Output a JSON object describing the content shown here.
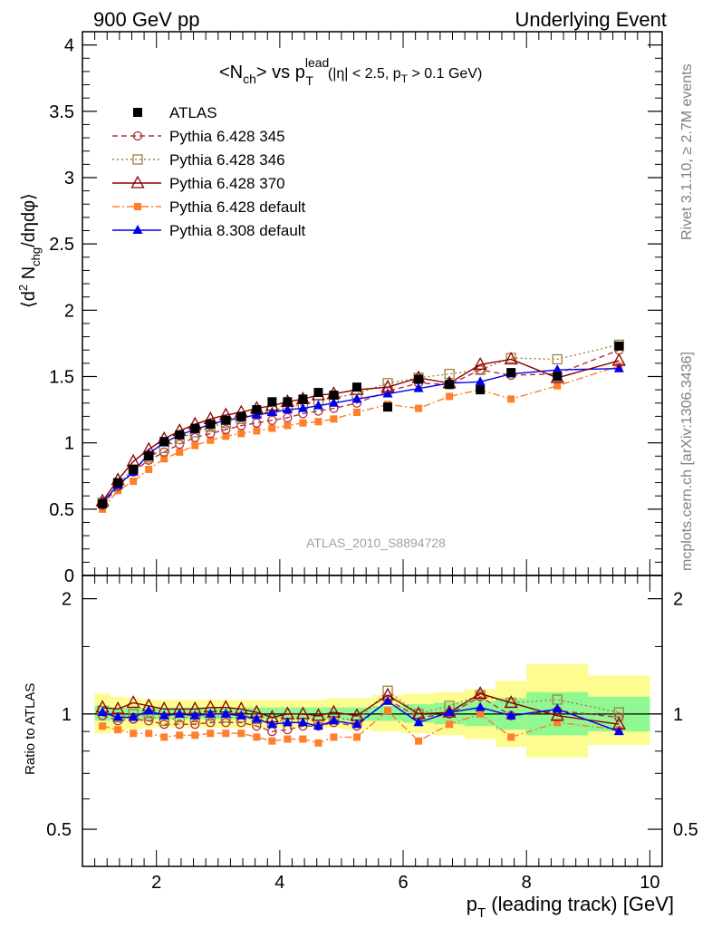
{
  "header": {
    "left_label": "900 GeV pp",
    "right_label": "Underlying Event"
  },
  "side_labels": {
    "rivet": "Rivet 3.1.10, ≥ 2.7M events",
    "mcplots": "mcplots.cern.ch [arXiv:1306.3436]"
  },
  "plot_title": {
    "main": "<N",
    "sub1": "ch",
    "mid": "> vs p",
    "sup": "lead",
    "sub2": "T",
    "cut": "(|η| < 2.5, p",
    "cut_sub": "T",
    "cut_end": " > 0.1 GeV)"
  },
  "analysis_id": "ATLAS_2010_S8894728",
  "colors": {
    "data": "#000000",
    "py345": "#b03040",
    "py346": "#a08040",
    "py370": "#8b0000",
    "p6def": "#ff7f2a",
    "p8def": "#0000ee",
    "band_stat": "#90f890",
    "band_syst": "#fcfc90"
  },
  "chart_data": [
    {
      "type": "line",
      "panel": "main",
      "ylabel_parts": [
        "⟨d",
        "2",
        " N",
        "chg",
        "/dηdφ⟩"
      ],
      "ylim": [
        0,
        4.1
      ],
      "yticks": [
        "0",
        "0.5",
        "1",
        "1.5",
        "2",
        "2.5",
        "3",
        "3.5",
        "4"
      ],
      "xlim": [
        0.8,
        10.2
      ],
      "x": [
        1.125,
        1.375,
        1.625,
        1.875,
        2.125,
        2.375,
        2.625,
        2.875,
        3.125,
        3.375,
        3.625,
        3.875,
        4.125,
        4.375,
        4.625,
        4.875,
        5.25,
        5.75,
        6.25,
        6.75,
        7.25,
        7.75,
        8.5,
        9.5
      ],
      "legend": {
        "placement": "top-left",
        "entries": [
          "ATLAS",
          "Pythia 6.428 345",
          "Pythia 6.428 346",
          "Pythia 6.428 370",
          "Pythia 6.428 default",
          "Pythia 8.308 default"
        ]
      },
      "series": [
        {
          "name": "ATLAS",
          "key": "data",
          "values": [
            0.54,
            0.7,
            0.8,
            0.9,
            1.01,
            1.06,
            1.11,
            1.14,
            1.17,
            1.2,
            1.25,
            1.31,
            1.31,
            1.33,
            1.38,
            1.36,
            1.42,
            1.27,
            1.48,
            1.44,
            1.4,
            1.53,
            1.5,
            1.73
          ]
        },
        {
          "name": "Pythia 6.428 345",
          "key": "py345",
          "values": [
            0.53,
            0.67,
            0.78,
            0.87,
            0.93,
            0.99,
            1.04,
            1.07,
            1.1,
            1.13,
            1.15,
            1.17,
            1.19,
            1.22,
            1.24,
            1.26,
            1.3,
            1.39,
            1.45,
            1.44,
            1.55,
            1.51,
            1.52,
            1.7
          ]
        },
        {
          "name": "Pythia 6.428 346",
          "key": "py346",
          "values": [
            0.55,
            0.69,
            0.8,
            0.89,
            0.96,
            1.03,
            1.08,
            1.12,
            1.15,
            1.18,
            1.22,
            1.24,
            1.27,
            1.29,
            1.32,
            1.34,
            1.37,
            1.45,
            1.49,
            1.52,
            1.55,
            1.64,
            1.63,
            1.74
          ]
        },
        {
          "name": "Pythia 6.428 370",
          "key": "py370",
          "values": [
            0.56,
            0.72,
            0.86,
            0.95,
            1.03,
            1.09,
            1.14,
            1.18,
            1.21,
            1.23,
            1.26,
            1.28,
            1.31,
            1.33,
            1.36,
            1.37,
            1.4,
            1.42,
            1.49,
            1.45,
            1.59,
            1.63,
            1.49,
            1.62
          ]
        },
        {
          "name": "Pythia 6.428 default",
          "key": "p6def",
          "values": [
            0.5,
            0.64,
            0.71,
            0.8,
            0.88,
            0.93,
            0.98,
            1.02,
            1.05,
            1.07,
            1.09,
            1.11,
            1.13,
            1.15,
            1.16,
            1.18,
            1.23,
            1.29,
            1.26,
            1.35,
            1.4,
            1.33,
            1.43,
            1.58
          ]
        },
        {
          "name": "Pythia 8.308 default",
          "key": "p8def",
          "values": [
            0.55,
            0.68,
            0.78,
            0.92,
            1.0,
            1.06,
            1.1,
            1.14,
            1.17,
            1.19,
            1.21,
            1.23,
            1.25,
            1.26,
            1.28,
            1.3,
            1.33,
            1.37,
            1.41,
            1.45,
            1.46,
            1.52,
            1.55,
            1.56
          ]
        }
      ]
    },
    {
      "type": "line",
      "panel": "ratio",
      "ylabel": "Ratio to ATLAS",
      "xlabel_parts": [
        "p",
        "T",
        " (leading track) [GeV]"
      ],
      "ylim": [
        0.4,
        2.3
      ],
      "log_y": true,
      "yticks": [
        "0.5",
        "1",
        "2"
      ],
      "xticks": [
        "2",
        "4",
        "6",
        "8",
        "10"
      ],
      "xlim": [
        0.8,
        10.2
      ],
      "x": [
        1.125,
        1.375,
        1.625,
        1.875,
        2.125,
        2.375,
        2.625,
        2.875,
        3.125,
        3.375,
        3.625,
        3.875,
        4.125,
        4.375,
        4.625,
        4.875,
        5.25,
        5.75,
        6.25,
        6.75,
        7.25,
        7.75,
        8.5,
        9.5
      ],
      "bands": {
        "x_edges": [
          1.0,
          1.25,
          1.5,
          1.75,
          2.0,
          2.25,
          2.5,
          2.75,
          3.0,
          3.25,
          3.5,
          3.75,
          4.0,
          4.25,
          4.5,
          4.75,
          5.0,
          5.5,
          6.0,
          6.5,
          7.0,
          7.5,
          8.0,
          9.0,
          10.0
        ],
        "syst_lo": [
          0.89,
          0.9,
          0.91,
          0.92,
          0.92,
          0.92,
          0.92,
          0.92,
          0.92,
          0.92,
          0.92,
          0.92,
          0.92,
          0.92,
          0.92,
          0.92,
          0.91,
          0.9,
          0.89,
          0.88,
          0.86,
          0.82,
          0.77,
          0.83
        ],
        "syst_hi": [
          1.13,
          1.11,
          1.1,
          1.09,
          1.09,
          1.09,
          1.09,
          1.09,
          1.09,
          1.09,
          1.09,
          1.09,
          1.09,
          1.09,
          1.09,
          1.1,
          1.1,
          1.12,
          1.13,
          1.14,
          1.16,
          1.22,
          1.35,
          1.26
        ],
        "stat_lo": [
          0.96,
          0.97,
          0.97,
          0.97,
          0.97,
          0.97,
          0.97,
          0.97,
          0.97,
          0.97,
          0.97,
          0.97,
          0.97,
          0.97,
          0.97,
          0.97,
          0.96,
          0.96,
          0.95,
          0.94,
          0.93,
          0.91,
          0.88,
          0.9
        ],
        "stat_hi": [
          1.05,
          1.04,
          1.04,
          1.04,
          1.04,
          1.04,
          1.04,
          1.04,
          1.04,
          1.04,
          1.04,
          1.04,
          1.04,
          1.04,
          1.04,
          1.04,
          1.04,
          1.05,
          1.06,
          1.07,
          1.08,
          1.1,
          1.14,
          1.11
        ]
      },
      "series": [
        {
          "name": "Pythia 6.428 345",
          "key": "py345",
          "values": [
            0.99,
            0.96,
            0.97,
            0.96,
            0.94,
            0.94,
            0.94,
            0.95,
            0.95,
            0.95,
            0.93,
            0.9,
            0.91,
            0.93,
            0.93,
            0.95,
            0.93,
            1.09,
            0.98,
            1.0,
            1.11,
            0.99,
            1.02,
            0.98
          ]
        },
        {
          "name": "Pythia 6.428 346",
          "key": "py346",
          "values": [
            1.02,
            0.98,
            1.0,
            0.99,
            0.96,
            0.98,
            0.98,
            0.99,
            0.98,
            0.98,
            0.97,
            0.95,
            0.97,
            0.97,
            0.96,
            0.98,
            0.96,
            1.15,
            1.0,
            1.05,
            1.12,
            1.07,
            1.09,
            1.01
          ]
        },
        {
          "name": "Pythia 6.428 370",
          "key": "py370",
          "values": [
            1.04,
            1.03,
            1.07,
            1.05,
            1.03,
            1.03,
            1.03,
            1.04,
            1.04,
            1.03,
            1.01,
            0.98,
            1.0,
            1.0,
            0.99,
            1.01,
            0.99,
            1.12,
            1.0,
            1.01,
            1.13,
            1.07,
            0.99,
            0.94
          ]
        },
        {
          "name": "Pythia 6.428 default",
          "key": "p6def",
          "values": [
            0.93,
            0.91,
            0.89,
            0.89,
            0.87,
            0.88,
            0.88,
            0.89,
            0.89,
            0.89,
            0.87,
            0.85,
            0.86,
            0.86,
            0.84,
            0.87,
            0.87,
            1.02,
            0.85,
            0.94,
            1.0,
            0.87,
            0.95,
            0.91
          ]
        },
        {
          "name": "Pythia 8.308 default",
          "key": "p8def",
          "values": [
            1.01,
            0.98,
            0.98,
            1.02,
            0.99,
            1.0,
            0.99,
            1.0,
            1.0,
            0.99,
            0.97,
            0.94,
            0.95,
            0.95,
            0.93,
            0.96,
            0.94,
            1.08,
            0.95,
            1.01,
            1.04,
            0.99,
            1.03,
            0.9
          ]
        }
      ]
    }
  ]
}
